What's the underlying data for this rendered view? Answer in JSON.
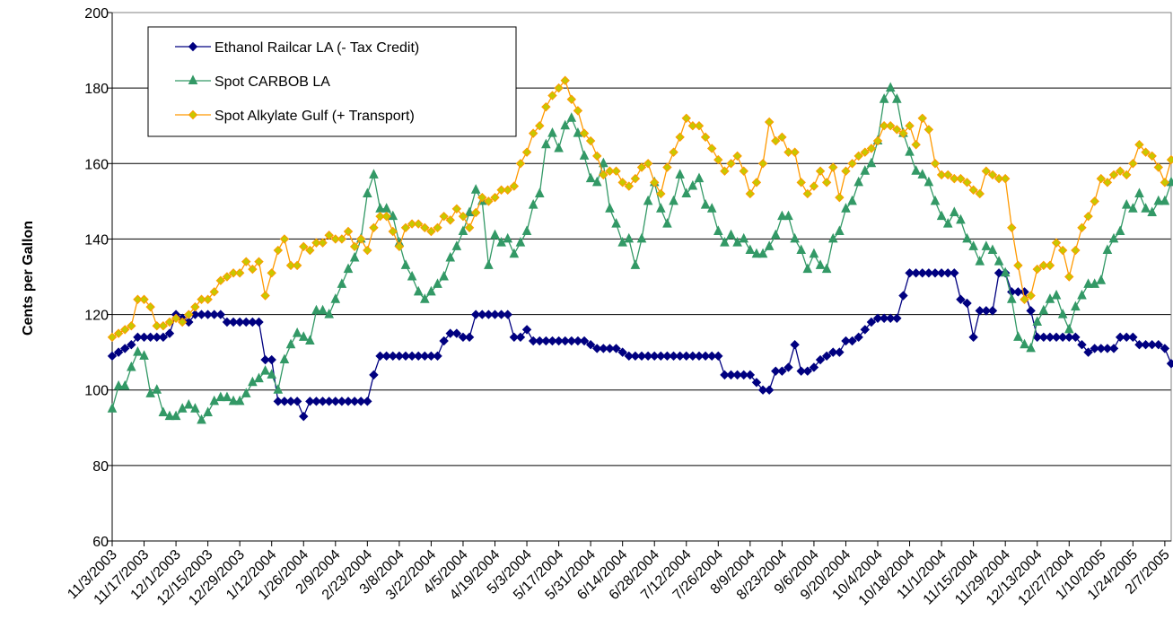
{
  "chart_data": {
    "type": "line",
    "categories": [
      "11/3/2003",
      null,
      null,
      null,
      null,
      "11/17/2003",
      null,
      null,
      null,
      null,
      "12/1/2003",
      null,
      null,
      null,
      null,
      "12/15/2003",
      null,
      null,
      null,
      null,
      "12/29/2003",
      null,
      null,
      null,
      null,
      "1/12/2004",
      null,
      null,
      null,
      null,
      "1/26/2004",
      null,
      null,
      null,
      null,
      "2/9/2004",
      null,
      null,
      null,
      null,
      "2/23/2004",
      null,
      null,
      null,
      null,
      "3/8/2004",
      null,
      null,
      null,
      null,
      "3/22/2004",
      null,
      null,
      null,
      null,
      "4/5/2004",
      null,
      null,
      null,
      null,
      "4/19/2004",
      null,
      null,
      null,
      null,
      "5/3/2004",
      null,
      null,
      null,
      null,
      "5/17/2004",
      null,
      null,
      null,
      null,
      "5/31/2004",
      null,
      null,
      null,
      null,
      "6/14/2004",
      null,
      null,
      null,
      null,
      "6/28/2004",
      null,
      null,
      null,
      null,
      "7/12/2004",
      null,
      null,
      null,
      null,
      "7/26/2004",
      null,
      null,
      null,
      null,
      "8/9/2004",
      null,
      null,
      null,
      null,
      "8/23/2004",
      null,
      null,
      null,
      null,
      "9/6/2004",
      null,
      null,
      null,
      null,
      "9/20/2004",
      null,
      null,
      null,
      null,
      "10/4/2004",
      null,
      null,
      null,
      null,
      "10/18/2004",
      null,
      null,
      null,
      null,
      "11/1/2004",
      null,
      null,
      null,
      null,
      "11/15/2004",
      null,
      null,
      null,
      null,
      "11/29/2004",
      null,
      null,
      null,
      null,
      "12/13/2004",
      null,
      null,
      null,
      null,
      "12/27/2004",
      null,
      null,
      null,
      null,
      "1/10/2005",
      null,
      null,
      null,
      null,
      "1/24/2005",
      null,
      null,
      null,
      null,
      "2/7/2005",
      null
    ],
    "series": [
      {
        "name": "Ethanol Railcar LA (- Tax Credit)",
        "color": "#000080",
        "marker": "diamond",
        "marker_fill": "#000080",
        "values": [
          109,
          110,
          111,
          112,
          114,
          114,
          114,
          114,
          114,
          115,
          120,
          119,
          118,
          120,
          120,
          120,
          120,
          120,
          118,
          118,
          118,
          118,
          118,
          118,
          108,
          108,
          97,
          97,
          97,
          97,
          93,
          97,
          97,
          97,
          97,
          97,
          97,
          97,
          97,
          97,
          97,
          104,
          109,
          109,
          109,
          109,
          109,
          109,
          109,
          109,
          109,
          109,
          113,
          115,
          115,
          114,
          114,
          120,
          120,
          120,
          120,
          120,
          120,
          114,
          114,
          116,
          113,
          113,
          113,
          113,
          113,
          113,
          113,
          113,
          113,
          112,
          111,
          111,
          111,
          111,
          110,
          109,
          109,
          109,
          109,
          109,
          109,
          109,
          109,
          109,
          109,
          109,
          109,
          109,
          109,
          109,
          104,
          104,
          104,
          104,
          104,
          102,
          100,
          100,
          105,
          105,
          106,
          112,
          105,
          105,
          106,
          108,
          109,
          110,
          110,
          113,
          113,
          114,
          116,
          118,
          119,
          119,
          119,
          119,
          125,
          131,
          131,
          131,
          131,
          131,
          131,
          131,
          131,
          124,
          123,
          114,
          121,
          121,
          121,
          131,
          131,
          126,
          126,
          126,
          121,
          114,
          114,
          114,
          114,
          114,
          114,
          114,
          112,
          110,
          111,
          111,
          111,
          111,
          114,
          114,
          114,
          112,
          112,
          112,
          112,
          111,
          107
        ]
      },
      {
        "name": "Spot CARBOB LA",
        "color": "#339966",
        "marker": "triangle",
        "marker_fill": "#339966",
        "values": [
          95,
          101,
          101,
          106,
          110,
          109,
          99,
          100,
          94,
          93,
          93,
          95,
          96,
          95,
          92,
          94,
          97,
          98,
          98,
          97,
          97,
          99,
          102,
          103,
          105,
          104,
          100,
          108,
          112,
          115,
          114,
          113,
          121,
          121,
          120,
          124,
          128,
          132,
          135,
          140,
          152,
          157,
          148,
          148,
          146,
          139,
          133,
          130,
          126,
          124,
          126,
          128,
          130,
          135,
          138,
          142,
          147,
          153,
          150,
          133,
          141,
          139,
          140,
          136,
          139,
          142,
          149,
          152,
          165,
          168,
          164,
          170,
          172,
          168,
          162,
          156,
          155,
          160,
          148,
          144,
          139,
          140,
          133,
          140,
          150,
          155,
          148,
          144,
          150,
          157,
          152,
          154,
          156,
          149,
          148,
          142,
          139,
          141,
          139,
          140,
          137,
          136,
          136,
          138,
          141,
          146,
          146,
          140,
          137,
          132,
          136,
          133,
          132,
          140,
          142,
          148,
          150,
          155,
          158,
          160,
          166,
          177,
          180,
          177,
          168,
          163,
          158,
          157,
          155,
          150,
          146,
          144,
          147,
          145,
          140,
          138,
          134,
          138,
          137,
          134,
          131,
          124,
          114,
          112,
          111,
          118,
          121,
          124,
          125,
          120,
          116,
          122,
          125,
          128,
          128,
          129,
          137,
          140,
          142,
          149,
          148,
          152,
          148,
          147,
          150,
          150,
          155
        ]
      },
      {
        "name": "Spot Alkylate Gulf (+ Transport)",
        "color": "#ff9900",
        "marker": "diamond",
        "marker_fill": "#c8c800",
        "values": [
          114,
          115,
          116,
          117,
          124,
          124,
          122,
          117,
          117,
          118,
          119,
          118,
          120,
          122,
          124,
          124,
          126,
          129,
          130,
          131,
          131,
          134,
          132,
          134,
          125,
          131,
          137,
          140,
          133,
          133,
          138,
          137,
          139,
          139,
          141,
          140,
          140,
          142,
          138,
          140,
          137,
          143,
          146,
          146,
          142,
          138,
          143,
          144,
          144,
          143,
          142,
          143,
          146,
          145,
          148,
          146,
          143,
          147,
          151,
          150,
          151,
          153,
          153,
          154,
          160,
          163,
          168,
          170,
          175,
          178,
          180,
          182,
          177,
          174,
          168,
          166,
          162,
          157,
          158,
          158,
          155,
          154,
          156,
          159,
          160,
          155,
          152,
          159,
          163,
          167,
          172,
          170,
          170,
          167,
          164,
          161,
          158,
          160,
          162,
          158,
          152,
          155,
          160,
          171,
          166,
          167,
          163,
          163,
          155,
          152,
          154,
          158,
          155,
          159,
          151,
          158,
          160,
          162,
          163,
          164,
          166,
          170,
          170,
          169,
          168,
          170,
          165,
          172,
          169,
          160,
          157,
          157,
          156,
          156,
          155,
          153,
          152,
          158,
          157,
          156,
          156,
          143,
          133,
          124,
          125,
          132,
          133,
          133,
          139,
          137,
          130,
          137,
          143,
          146,
          150,
          156,
          155,
          157,
          158,
          157,
          160,
          165,
          163,
          162,
          159,
          155,
          161
        ]
      }
    ],
    "y_label": "Cents per Gallon",
    "ylim": [
      60,
      200
    ],
    "yticks": [
      60,
      80,
      100,
      120,
      140,
      160,
      180,
      200
    ],
    "grid": true,
    "legend": "top-left"
  }
}
